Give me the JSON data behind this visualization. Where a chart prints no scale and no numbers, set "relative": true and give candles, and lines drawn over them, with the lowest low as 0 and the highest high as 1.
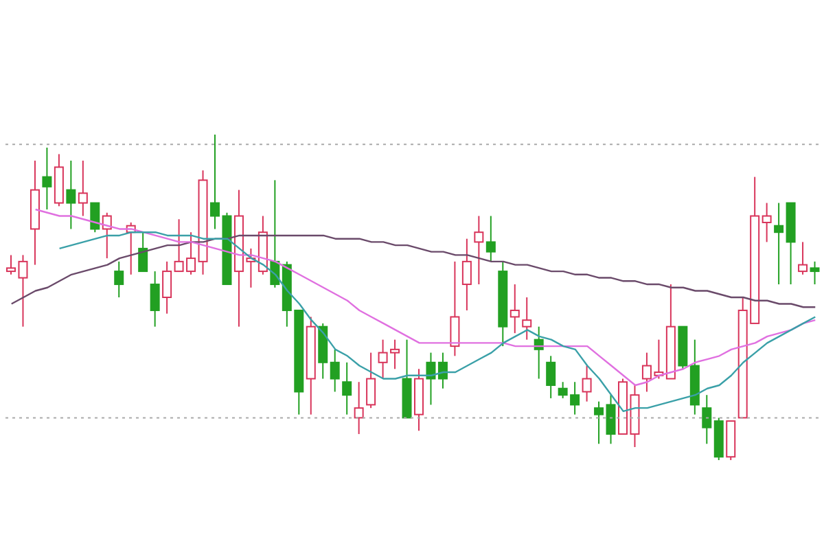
{
  "chart_data": {
    "type": "candlestick",
    "relative": true,
    "categories": [
      null,
      null,
      null,
      null,
      null,
      null,
      null,
      null,
      null,
      null,
      null,
      null,
      null,
      null,
      null,
      null,
      null,
      null,
      null,
      null,
      null,
      null,
      null,
      null,
      null,
      null,
      null,
      null,
      null,
      null,
      null,
      null,
      null,
      null,
      null,
      null,
      null,
      null,
      null,
      null,
      null,
      null,
      null,
      null,
      null,
      null,
      null,
      null,
      null,
      null,
      null,
      null,
      null,
      null,
      null,
      null,
      null,
      null,
      null,
      null,
      null,
      null,
      null,
      null,
      null,
      null,
      null,
      null
    ],
    "ohlc": [
      [
        0.58,
        0.63,
        0.57,
        0.59
      ],
      [
        0.56,
        0.63,
        0.41,
        0.61
      ],
      [
        0.71,
        0.92,
        0.6,
        0.83
      ],
      [
        0.87,
        0.96,
        0.77,
        0.84
      ],
      [
        0.79,
        0.94,
        0.78,
        0.9
      ],
      [
        0.83,
        0.92,
        0.71,
        0.79
      ],
      [
        0.79,
        0.92,
        0.75,
        0.82
      ],
      [
        0.79,
        0.79,
        0.7,
        0.71
      ],
      [
        0.71,
        0.76,
        0.62,
        0.75
      ],
      [
        0.58,
        0.61,
        0.5,
        0.54
      ],
      [
        0.7,
        0.73,
        0.57,
        0.72
      ],
      [
        0.65,
        0.7,
        0.58,
        0.58
      ],
      [
        0.54,
        0.58,
        0.41,
        0.46
      ],
      [
        0.5,
        0.61,
        0.45,
        0.58
      ],
      [
        0.58,
        0.74,
        0.58,
        0.61
      ],
      [
        0.58,
        0.7,
        0.57,
        0.62
      ],
      [
        0.61,
        0.89,
        0.57,
        0.86
      ],
      [
        0.79,
        1.0,
        0.71,
        0.75
      ],
      [
        0.75,
        0.76,
        0.54,
        0.54
      ],
      [
        0.58,
        0.83,
        0.41,
        0.75
      ],
      [
        0.61,
        0.65,
        0.53,
        0.62
      ],
      [
        0.58,
        0.75,
        0.57,
        0.7
      ],
      [
        0.61,
        0.86,
        0.53,
        0.54
      ],
      [
        0.6,
        0.61,
        0.41,
        0.46
      ],
      [
        0.46,
        0.46,
        0.14,
        0.21
      ],
      [
        0.25,
        0.44,
        0.14,
        0.41
      ],
      [
        0.41,
        0.42,
        0.25,
        0.3
      ],
      [
        0.3,
        0.34,
        0.21,
        0.25
      ],
      [
        0.24,
        0.3,
        0.14,
        0.2
      ],
      [
        0.13,
        0.24,
        0.08,
        0.16
      ],
      [
        0.17,
        0.33,
        0.16,
        0.25
      ],
      [
        0.3,
        0.37,
        0.25,
        0.33
      ],
      [
        0.33,
        0.37,
        0.28,
        0.34
      ],
      [
        0.25,
        0.37,
        0.13,
        0.13
      ],
      [
        0.14,
        0.28,
        0.09,
        0.25
      ],
      [
        0.3,
        0.33,
        0.17,
        0.25
      ],
      [
        0.3,
        0.33,
        0.22,
        0.25
      ],
      [
        0.35,
        0.61,
        0.32,
        0.44
      ],
      [
        0.54,
        0.68,
        0.46,
        0.61
      ],
      [
        0.67,
        0.75,
        0.54,
        0.7
      ],
      [
        0.67,
        0.75,
        0.61,
        0.64
      ],
      [
        0.58,
        0.61,
        0.35,
        0.41
      ],
      [
        0.44,
        0.54,
        0.39,
        0.46
      ],
      [
        0.41,
        0.5,
        0.37,
        0.43
      ],
      [
        0.37,
        0.41,
        0.25,
        0.34
      ],
      [
        0.3,
        0.32,
        0.19,
        0.23
      ],
      [
        0.22,
        0.24,
        0.19,
        0.2
      ],
      [
        0.2,
        0.24,
        0.14,
        0.17
      ],
      [
        0.21,
        0.29,
        0.18,
        0.25
      ],
      [
        0.16,
        0.18,
        0.05,
        0.14
      ],
      [
        0.17,
        0.2,
        0.05,
        0.08
      ],
      [
        0.08,
        0.25,
        0.08,
        0.24
      ],
      [
        0.08,
        0.23,
        0.04,
        0.2
      ],
      [
        0.25,
        0.33,
        0.21,
        0.29
      ],
      [
        0.26,
        0.37,
        0.25,
        0.27
      ],
      [
        0.25,
        0.54,
        0.25,
        0.41
      ],
      [
        0.41,
        0.41,
        0.28,
        0.29
      ],
      [
        0.29,
        0.37,
        0.14,
        0.17
      ],
      [
        0.16,
        0.2,
        0.05,
        0.1
      ],
      [
        0.12,
        0.13,
        0.0,
        0.01
      ],
      [
        0.01,
        0.12,
        0.0,
        0.12
      ],
      [
        0.13,
        0.5,
        0.13,
        0.46
      ],
      [
        0.42,
        0.87,
        0.42,
        0.75
      ],
      [
        0.73,
        0.79,
        0.67,
        0.75
      ],
      [
        0.72,
        0.79,
        0.54,
        0.7
      ],
      [
        0.79,
        0.79,
        0.54,
        0.67
      ],
      [
        0.58,
        0.67,
        0.57,
        0.6
      ],
      [
        0.59,
        0.61,
        0.54,
        0.58
      ]
    ],
    "colors": [
      "#d8345a",
      "#d8345a",
      "#d8345a",
      "#22a022",
      "#d8345a",
      "#22a022",
      "#d8345a",
      "#22a022",
      "#d8345a",
      "#22a022",
      "#d8345a",
      "#22a022",
      "#22a022",
      "#d8345a",
      "#d8345a",
      "#d8345a",
      "#d8345a",
      "#22a022",
      "#22a022",
      "#d8345a",
      "#d8345a",
      "#d8345a",
      "#22a022",
      "#22a022",
      "#22a022",
      "#d8345a",
      "#22a022",
      "#22a022",
      "#22a022",
      "#d8345a",
      "#d8345a",
      "#d8345a",
      "#d8345a",
      "#22a022",
      "#d8345a",
      "#22a022",
      "#22a022",
      "#d8345a",
      "#d8345a",
      "#d8345a",
      "#22a022",
      "#22a022",
      "#d8345a",
      "#d8345a",
      "#22a022",
      "#22a022",
      "#22a022",
      "#22a022",
      "#d8345a",
      "#22a022",
      "#22a022",
      "#d8345a",
      "#d8345a",
      "#d8345a",
      "#d8345a",
      "#d8345a",
      "#22a022",
      "#22a022",
      "#22a022",
      "#22a022",
      "#d8345a",
      "#d8345a",
      "#d8345a",
      "#d8345a",
      "#22a022",
      "#22a022",
      "#d8345a",
      "#22a022"
    ],
    "series": [
      {
        "type": "line",
        "color": "#6a4a6a",
        "values": [
          0.48,
          0.5,
          0.52,
          0.53,
          0.55,
          0.57,
          0.58,
          0.59,
          0.6,
          0.62,
          0.63,
          0.64,
          0.65,
          0.66,
          0.66,
          0.67,
          0.67,
          0.68,
          0.68,
          0.69,
          0.69,
          0.69,
          0.69,
          0.69,
          0.69,
          0.69,
          0.69,
          0.68,
          0.68,
          0.68,
          0.67,
          0.67,
          0.66,
          0.66,
          0.65,
          0.64,
          0.64,
          0.63,
          0.63,
          0.62,
          0.61,
          0.61,
          0.6,
          0.6,
          0.59,
          0.58,
          0.58,
          0.57,
          0.57,
          0.56,
          0.56,
          0.55,
          0.55,
          0.54,
          0.54,
          0.53,
          0.53,
          0.52,
          0.52,
          0.51,
          0.5,
          0.5,
          0.49,
          0.49,
          0.48,
          0.48,
          0.47,
          0.47
        ]
      },
      {
        "type": "line",
        "color": "#e070e0",
        "values": [
          null,
          null,
          0.77,
          0.76,
          0.75,
          0.75,
          0.74,
          0.73,
          0.72,
          0.71,
          0.71,
          0.7,
          0.69,
          0.68,
          0.67,
          0.67,
          0.66,
          0.65,
          0.64,
          0.63,
          0.63,
          0.62,
          0.61,
          0.59,
          0.57,
          0.55,
          0.53,
          0.51,
          0.49,
          0.46,
          0.44,
          0.42,
          0.4,
          0.38,
          0.36,
          0.36,
          0.36,
          0.36,
          0.36,
          0.36,
          0.36,
          0.36,
          0.35,
          0.35,
          0.35,
          0.35,
          0.35,
          0.35,
          0.35,
          0.32,
          0.29,
          0.26,
          0.23,
          0.24,
          0.26,
          0.27,
          0.28,
          0.3,
          0.31,
          0.32,
          0.34,
          0.35,
          0.36,
          0.38,
          0.39,
          0.4,
          0.42,
          0.43
        ]
      },
      {
        "type": "line",
        "color": "#3aa0a8",
        "values": [
          null,
          null,
          null,
          null,
          0.65,
          0.66,
          0.67,
          0.68,
          0.69,
          0.69,
          0.7,
          0.7,
          0.7,
          0.69,
          0.69,
          0.69,
          0.68,
          0.68,
          0.68,
          0.65,
          0.62,
          0.6,
          0.57,
          0.52,
          0.48,
          0.43,
          0.39,
          0.34,
          0.32,
          0.29,
          0.27,
          0.25,
          0.25,
          0.26,
          0.26,
          0.26,
          0.27,
          0.27,
          0.29,
          0.31,
          0.33,
          0.36,
          0.38,
          0.4,
          0.38,
          0.37,
          0.35,
          0.34,
          0.29,
          0.25,
          0.2,
          0.15,
          0.16,
          0.16,
          0.17,
          0.18,
          0.19,
          0.2,
          0.22,
          0.23,
          0.26,
          0.3,
          0.33,
          0.36,
          0.38,
          0.4,
          0.42,
          0.44
        ]
      }
    ],
    "ref_lines": [
      {
        "axis": "y",
        "value": 0.97,
        "color": "#aaaaaa",
        "line_style": "dotted"
      },
      {
        "axis": "y",
        "value": 0.13,
        "color": "#aaaaaa",
        "line_style": "dotted"
      }
    ]
  }
}
